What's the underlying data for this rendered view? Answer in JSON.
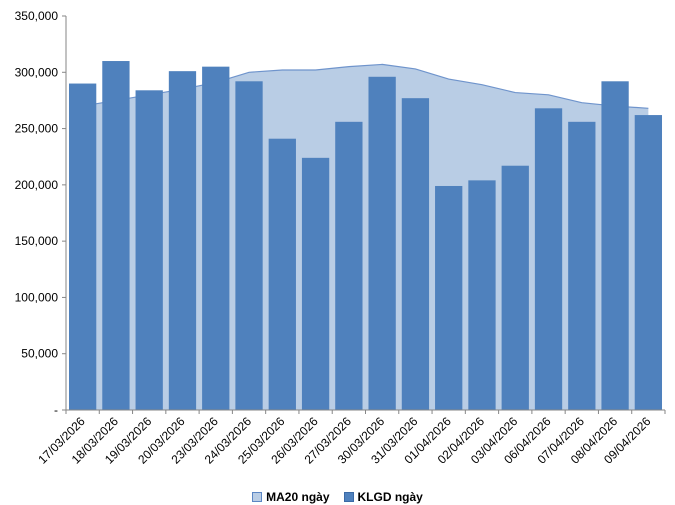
{
  "chart_data": {
    "type": "bar",
    "categories": [
      "17/03/2026",
      "18/03/2026",
      "19/03/2026",
      "20/03/2026",
      "23/03/2026",
      "24/03/2026",
      "25/03/2026",
      "26/03/2026",
      "27/03/2026",
      "30/03/2026",
      "31/03/2026",
      "01/04/2026",
      "02/04/2026",
      "03/04/2026",
      "06/04/2026",
      "07/04/2026",
      "08/04/2026",
      "09/04/2026"
    ],
    "series": [
      {
        "name": "KLGD ngày",
        "kind": "bar",
        "color": "#4f81bd",
        "values": [
          290000,
          310000,
          284000,
          301000,
          305000,
          292000,
          241000,
          224000,
          256000,
          296000,
          277000,
          199000,
          204000,
          217000,
          268000,
          256000,
          292000,
          262000
        ]
      },
      {
        "name": "MA20 ngày",
        "kind": "area",
        "color": "#b9cde5",
        "line_color": "#6f94cc",
        "values": [
          270000,
          275000,
          280000,
          285000,
          291000,
          300000,
          302000,
          302000,
          305000,
          307000,
          303000,
          294000,
          289000,
          282000,
          280000,
          273000,
          270000,
          268000
        ]
      }
    ],
    "yticks": [
      "-",
      "50,000",
      "100,000",
      "150,000",
      "200,000",
      "250,000",
      "300,000",
      "350,000"
    ],
    "ylim": [
      0,
      350000
    ],
    "grid": false,
    "legend_position": "bottom"
  }
}
